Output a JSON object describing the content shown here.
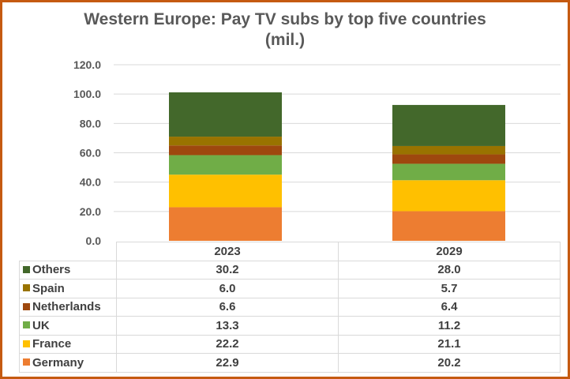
{
  "chart_data": {
    "type": "bar",
    "stacked": true,
    "title": "Western Europe: Pay TV subs by top five countries (mil.)",
    "title_lines": [
      "Western Europe: Pay TV subs by top five countries",
      "(mil.)"
    ],
    "categories": [
      "2023",
      "2029"
    ],
    "yticks": [
      "0.0",
      "20.0",
      "40.0",
      "60.0",
      "80.0",
      "100.0",
      "120.0"
    ],
    "ylim": [
      0,
      120
    ],
    "grid": true,
    "legend": "data-table",
    "series": [
      {
        "name": "Germany",
        "color": "#ed7d31",
        "values": [
          22.9,
          20.2
        ],
        "labels": [
          "22.9",
          "20.2"
        ]
      },
      {
        "name": "France",
        "color": "#ffc000",
        "values": [
          22.2,
          21.1
        ],
        "labels": [
          "22.2",
          "21.1"
        ]
      },
      {
        "name": "UK",
        "color": "#70ad47",
        "values": [
          13.3,
          11.2
        ],
        "labels": [
          "13.3",
          "11.2"
        ]
      },
      {
        "name": "Netherlands",
        "color": "#9e480e",
        "values": [
          6.6,
          6.4
        ],
        "labels": [
          "6.6",
          "6.4"
        ]
      },
      {
        "name": "Spain",
        "color": "#997300",
        "values": [
          6.0,
          5.7
        ],
        "labels": [
          "6.0",
          "5.7"
        ]
      },
      {
        "name": "Others",
        "color": "#43682b",
        "values": [
          30.2,
          28.0
        ],
        "labels": [
          "30.2",
          "28.0"
        ]
      }
    ]
  }
}
